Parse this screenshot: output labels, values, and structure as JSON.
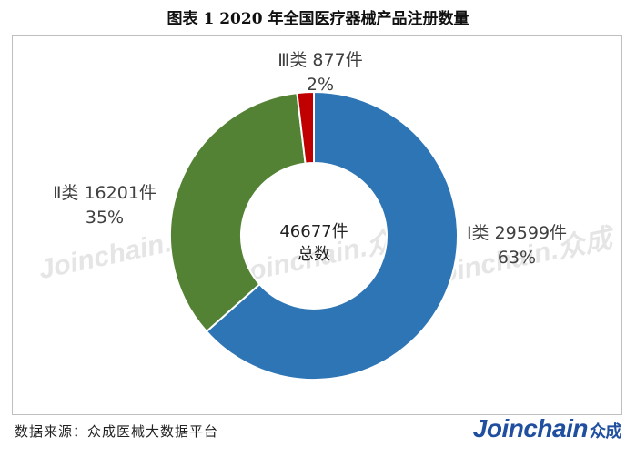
{
  "title": "图表 1    2020 年全国医疗器械产品注册数量",
  "source": "数据来源：众成医械大数据平台",
  "brand": {
    "latin": "Joinchain",
    "cn": "众成"
  },
  "watermark": "Joinchain.众成",
  "chart_data": {
    "type": "pie",
    "donut": true,
    "categories": [
      "Ⅰ类",
      "Ⅱ类",
      "Ⅲ类"
    ],
    "values": [
      29599,
      16201,
      877
    ],
    "value_labels": [
      "29599件",
      "16201件",
      "877件"
    ],
    "percent_labels": [
      "63%",
      "35%",
      "2%"
    ],
    "colors": [
      "#2e75b6",
      "#548235",
      "#c00000"
    ],
    "center": {
      "value": "46677件",
      "label": "总数"
    }
  }
}
